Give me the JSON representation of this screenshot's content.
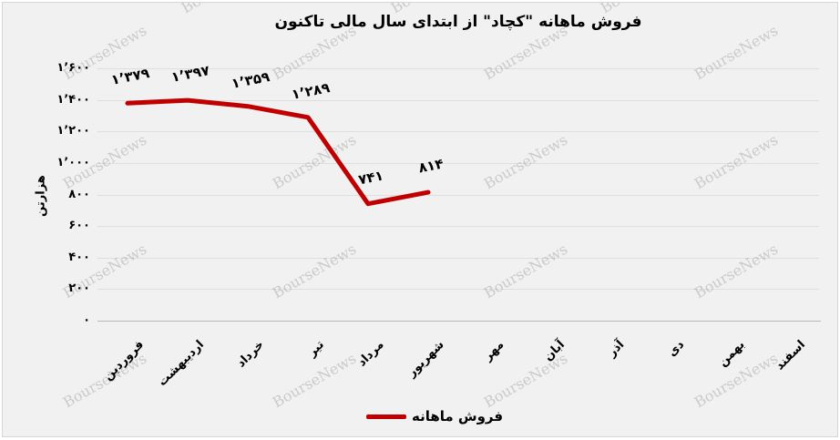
{
  "watermark": {
    "text": "BourseNews"
  },
  "legend": {
    "label": "فروش ماهانه"
  },
  "chart_data": {
    "type": "line",
    "title": "فروش ماهانه \"کچاد\" از ابتدای سال مالی تاکنون",
    "xlabel": "",
    "ylabel": "هزارتن",
    "categories": [
      "فروردین",
      "اردیبهشت",
      "خرداد",
      "تیر",
      "مرداد",
      "شهریور",
      "مهر",
      "آبان",
      "آذر",
      "دی",
      "بهمن",
      "اسفند"
    ],
    "series": [
      {
        "name": "فروش ماهانه",
        "color": "#c00000",
        "values": [
          1379,
          1397,
          1359,
          1289,
          741,
          814,
          null,
          null,
          null,
          null,
          null,
          null
        ],
        "point_labels": [
          "۱٬۳۷۹",
          "۱٬۳۹۷",
          "۱٬۳۵۹",
          "۱٬۲۸۹",
          "۷۴۱",
          "۸۱۴",
          null,
          null,
          null,
          null,
          null,
          null
        ]
      }
    ],
    "ylim": [
      0,
      1600
    ],
    "ytick_values": [
      0,
      200,
      400,
      600,
      800,
      1000,
      1200,
      1400,
      1600
    ],
    "ytick_labels": [
      "۰",
      "۲۰۰",
      "۴۰۰",
      "۶۰۰",
      "۸۰۰",
      "۱٬۰۰۰",
      "۱٬۲۰۰",
      "۱٬۴۰۰",
      "۱٬۶۰۰"
    ],
    "grid": true,
    "legend_position": "bottom",
    "colors": {
      "line": "#c00000",
      "plot_background": "#f1f1f1",
      "gridline": "#dedede",
      "axis_line": "#b9b9b9",
      "text": "#000000",
      "watermark": "#8d8d8d"
    }
  }
}
